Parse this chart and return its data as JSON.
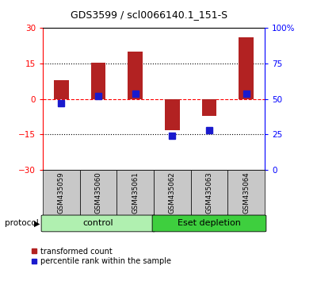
{
  "title": "GDS3599 / scl0066140.1_151-S",
  "samples": [
    "GSM435059",
    "GSM435060",
    "GSM435061",
    "GSM435062",
    "GSM435063",
    "GSM435064"
  ],
  "red_values": [
    8.0,
    15.2,
    20.0,
    -13.0,
    -7.0,
    26.0
  ],
  "blue_values": [
    47.0,
    52.0,
    54.0,
    24.0,
    28.0,
    54.0
  ],
  "ylim_left": [
    -30,
    30
  ],
  "ylim_right": [
    0,
    100
  ],
  "yticks_left": [
    -30,
    -15,
    0,
    15,
    30
  ],
  "yticks_right": [
    0,
    25,
    50,
    75,
    100
  ],
  "ytick_labels_right": [
    "0",
    "25",
    "50",
    "75",
    "100%"
  ],
  "bar_color": "#b22222",
  "blue_color": "#1a1acd",
  "bar_width": 0.4,
  "blue_marker_size": 6,
  "control_color": "#b0f0b0",
  "eset_color": "#3ecf3e",
  "sample_box_color": "#c8c8c8",
  "protocol_label": "protocol",
  "legend_red": "transformed count",
  "legend_blue": "percentile rank within the sample",
  "background_color": "#ffffff"
}
